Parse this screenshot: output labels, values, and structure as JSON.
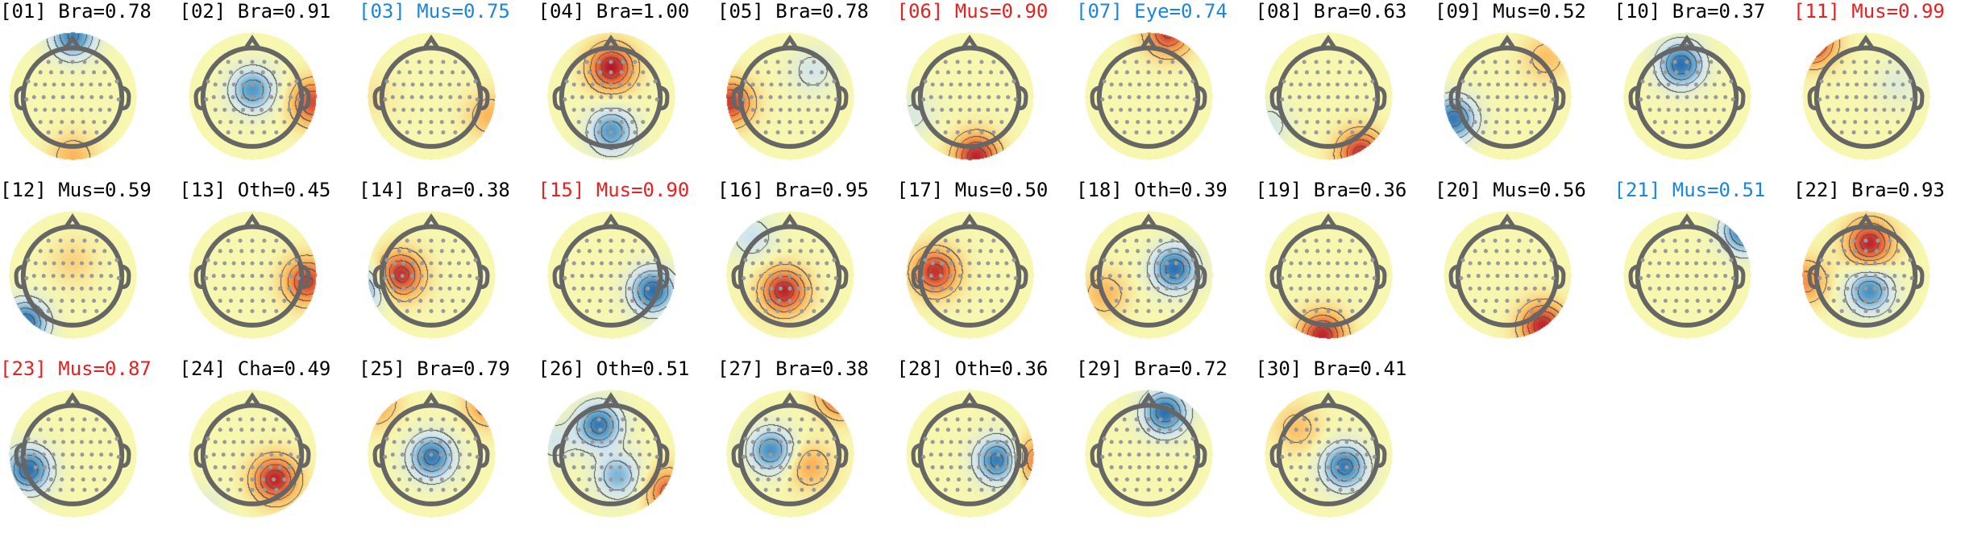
{
  "colors": {
    "label_default": "#000000",
    "label_red": "#e8201f",
    "label_blue": "#1a86e0",
    "head_outline": "#666666",
    "electrode": "#9a9a9a",
    "contour": "#333333",
    "colormap": [
      "#2166ac",
      "#67a9cf",
      "#d1e5f0",
      "#f7f7b0",
      "#fdbb5e",
      "#ef6a3a",
      "#b2182b"
    ]
  },
  "components": [
    {
      "label": "[01] Bra=0.78",
      "color": "default",
      "blobs": [
        [
          0.0,
          -0.95,
          -0.85
        ],
        [
          0.0,
          0.95,
          0.35
        ]
      ]
    },
    {
      "label": "[02] Bra=0.91",
      "color": "default",
      "blobs": [
        [
          0.0,
          -0.1,
          -0.75
        ],
        [
          0.95,
          0.1,
          0.8
        ]
      ]
    },
    {
      "label": "[03] Mus=0.75",
      "color": "blue",
      "blobs": [
        [
          0.9,
          0.3,
          0.35
        ],
        [
          -0.9,
          0.0,
          0.1
        ]
      ]
    },
    {
      "label": "[04] Bra=1.00",
      "color": "default",
      "blobs": [
        [
          0.0,
          -0.45,
          1.0
        ],
        [
          0.0,
          0.55,
          -0.75
        ]
      ]
    },
    {
      "label": "[05] Bra=0.78",
      "color": "default",
      "blobs": [
        [
          -0.95,
          0.1,
          0.85
        ],
        [
          0.35,
          -0.4,
          -0.3
        ]
      ]
    },
    {
      "label": "[06] Mus=0.90",
      "color": "red",
      "blobs": [
        [
          0.1,
          0.95,
          0.95
        ],
        [
          -0.9,
          0.3,
          -0.25
        ]
      ]
    },
    {
      "label": "[07] Eye=0.74",
      "color": "blue",
      "blobs": [
        [
          0.3,
          -1.0,
          0.85
        ]
      ]
    },
    {
      "label": "[08] Bra=0.63",
      "color": "default",
      "blobs": [
        [
          0.5,
          0.9,
          0.9
        ],
        [
          -0.95,
          0.45,
          -0.3
        ]
      ]
    },
    {
      "label": "[09] Mus=0.52",
      "color": "default",
      "blobs": [
        [
          -0.85,
          0.35,
          -0.9
        ],
        [
          0.6,
          -0.6,
          0.3
        ]
      ]
    },
    {
      "label": "[10] Bra=0.37",
      "color": "default",
      "blobs": [
        [
          -0.1,
          -0.5,
          -0.95
        ]
      ]
    },
    {
      "label": "[11] Mus=0.99",
      "color": "red",
      "blobs": [
        [
          -0.85,
          -0.85,
          0.95
        ],
        [
          0.5,
          -0.2,
          -0.2
        ]
      ]
    },
    {
      "label": "[12] Mus=0.59",
      "color": "default",
      "blobs": [
        [
          -0.75,
          0.75,
          -0.95
        ],
        [
          0.0,
          -0.2,
          0.2
        ]
      ]
    },
    {
      "label": "[13] Oth=0.45",
      "color": "default",
      "blobs": [
        [
          0.85,
          0.1,
          0.85
        ]
      ]
    },
    {
      "label": "[14] Bra=0.38",
      "color": "default",
      "blobs": [
        [
          -0.5,
          0.0,
          0.95
        ],
        [
          -1.0,
          0.2,
          -0.6
        ]
      ]
    },
    {
      "label": "[15] Mus=0.90",
      "color": "red",
      "blobs": [
        [
          0.65,
          0.25,
          -0.95
        ]
      ]
    },
    {
      "label": "[16] Bra=0.95",
      "color": "default",
      "blobs": [
        [
          -0.1,
          0.25,
          0.95
        ],
        [
          -0.6,
          -0.6,
          -0.35
        ]
      ]
    },
    {
      "label": "[17] Mus=0.50",
      "color": "default",
      "blobs": [
        [
          -0.55,
          -0.05,
          0.9
        ]
      ]
    },
    {
      "label": "[18] Oth=0.39",
      "color": "default",
      "blobs": [
        [
          0.4,
          -0.1,
          -0.95
        ],
        [
          -0.7,
          0.3,
          0.35
        ]
      ]
    },
    {
      "label": "[19] Bra=0.36",
      "color": "default",
      "blobs": [
        [
          -0.1,
          0.95,
          0.95
        ]
      ]
    },
    {
      "label": "[20] Mus=0.56",
      "color": "default",
      "blobs": [
        [
          0.55,
          0.8,
          0.95
        ]
      ]
    },
    {
      "label": "[21] Mus=0.51",
      "color": "blue",
      "blobs": [
        [
          0.9,
          -0.7,
          -0.95
        ]
      ]
    },
    {
      "label": "[22] Bra=0.93",
      "color": "default",
      "blobs": [
        [
          0.05,
          -0.5,
          0.95
        ],
        [
          0.05,
          0.25,
          -0.8
        ],
        [
          -0.95,
          0.1,
          0.5
        ]
      ]
    },
    {
      "label": "[23] Mus=0.87",
      "color": "red",
      "blobs": [
        [
          -0.7,
          0.25,
          -0.95
        ]
      ]
    },
    {
      "label": "[24] Cha=0.49",
      "color": "default",
      "blobs": [
        [
          0.35,
          0.4,
          0.95
        ],
        [
          -0.8,
          0.9,
          -0.25
        ]
      ]
    },
    {
      "label": "[25] Bra=0.79",
      "color": "default",
      "blobs": [
        [
          0.0,
          0.05,
          -0.9
        ],
        [
          0.9,
          -0.8,
          0.6
        ],
        [
          -0.9,
          -0.8,
          0.5
        ]
      ]
    },
    {
      "label": "[26] Oth=0.51",
      "color": "default",
      "blobs": [
        [
          -0.2,
          -0.45,
          -0.9
        ],
        [
          0.1,
          0.35,
          -0.6
        ],
        [
          0.9,
          0.6,
          0.7
        ],
        [
          -0.9,
          -0.2,
          -0.3
        ]
      ]
    },
    {
      "label": "[27] Bra=0.38",
      "color": "default",
      "blobs": [
        [
          -0.3,
          -0.05,
          -0.8
        ],
        [
          0.8,
          -0.95,
          0.9
        ],
        [
          0.3,
          0.2,
          0.4
        ]
      ]
    },
    {
      "label": "[28] Oth=0.36",
      "color": "default",
      "blobs": [
        [
          0.45,
          0.1,
          -0.95
        ],
        [
          0.95,
          0.1,
          0.6
        ]
      ]
    },
    {
      "label": "[29] Bra=0.72",
      "color": "default",
      "blobs": [
        [
          0.25,
          -0.65,
          -0.95
        ]
      ]
    },
    {
      "label": "[30] Bra=0.41",
      "color": "default",
      "blobs": [
        [
          0.25,
          0.2,
          -0.9
        ],
        [
          -0.5,
          -0.4,
          0.3
        ]
      ]
    }
  ]
}
